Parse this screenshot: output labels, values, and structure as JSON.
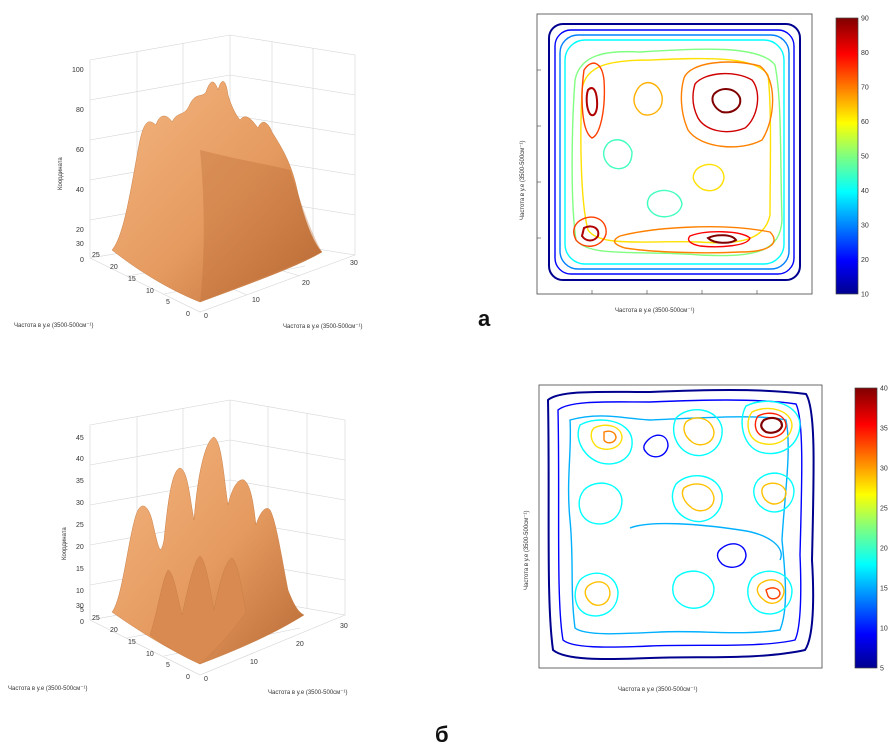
{
  "labels": {
    "a": "а",
    "b": "б"
  },
  "colors": {
    "surface": "#e59a5f",
    "surface_dark": "#a85f2c",
    "grid": "#cfcfcf"
  },
  "chart_data": [
    {
      "type": "surface",
      "panel": "а",
      "zlabel": "Координата",
      "xlabel": "Частота в у.е (3500-500см⁻¹)",
      "ylabel": "Частота в у.е (3500-500см⁻¹)",
      "xticks": [
        "0",
        "10",
        "20",
        "30"
      ],
      "yticks": [
        "0",
        "5",
        "10",
        "15",
        "20",
        "25",
        "30"
      ],
      "zticks": [
        "0",
        "20",
        "40",
        "60",
        "80",
        "100"
      ],
      "zlim": [
        0,
        100
      ],
      "peaks": [
        {
          "z": 95
        },
        {
          "z": 90
        },
        {
          "z": 85
        },
        {
          "z": 70
        },
        {
          "z": 65
        },
        {
          "z": 60
        }
      ]
    },
    {
      "type": "contour",
      "panel": "а",
      "xlabel": "Частота в у.е (3500-500см⁻¹)",
      "ylabel": "Частота в у.е (3500-500см⁻¹)",
      "colorbar_ticks": [
        "10",
        "20",
        "30",
        "40",
        "50",
        "60",
        "70",
        "80",
        "90"
      ],
      "colorbar_range": [
        10,
        90
      ],
      "levels": [
        10,
        20,
        30,
        40,
        50,
        60,
        70,
        80,
        90
      ]
    },
    {
      "type": "surface",
      "panel": "б",
      "zlabel": "Координата",
      "xlabel": "Частота в у.е (3500-500см⁻¹)",
      "ylabel": "Частота в у.е (3500-500см⁻¹)",
      "xticks": [
        "0",
        "10",
        "20",
        "30"
      ],
      "yticks": [
        "0",
        "5",
        "10",
        "15",
        "20",
        "25",
        "30"
      ],
      "zticks": [
        "0",
        "5",
        "10",
        "15",
        "20",
        "25",
        "30",
        "35",
        "40",
        "45"
      ],
      "zlim": [
        0,
        45
      ],
      "peaks": [
        {
          "z": 45
        },
        {
          "z": 37
        },
        {
          "z": 37
        },
        {
          "z": 35
        },
        {
          "z": 30
        },
        {
          "z": 30
        },
        {
          "z": 28
        },
        {
          "z": 27
        },
        {
          "z": 25
        }
      ]
    },
    {
      "type": "contour",
      "panel": "б",
      "xlabel": "Частота в у.е (3500-500см⁻¹)",
      "ylabel": "Частота в у.е (3500-500см⁻¹)",
      "colorbar_ticks": [
        "5",
        "10",
        "15",
        "20",
        "25",
        "30",
        "35",
        "40"
      ],
      "colorbar_range": [
        5,
        40
      ],
      "levels": [
        5,
        10,
        15,
        20,
        25,
        30,
        35
      ]
    }
  ]
}
